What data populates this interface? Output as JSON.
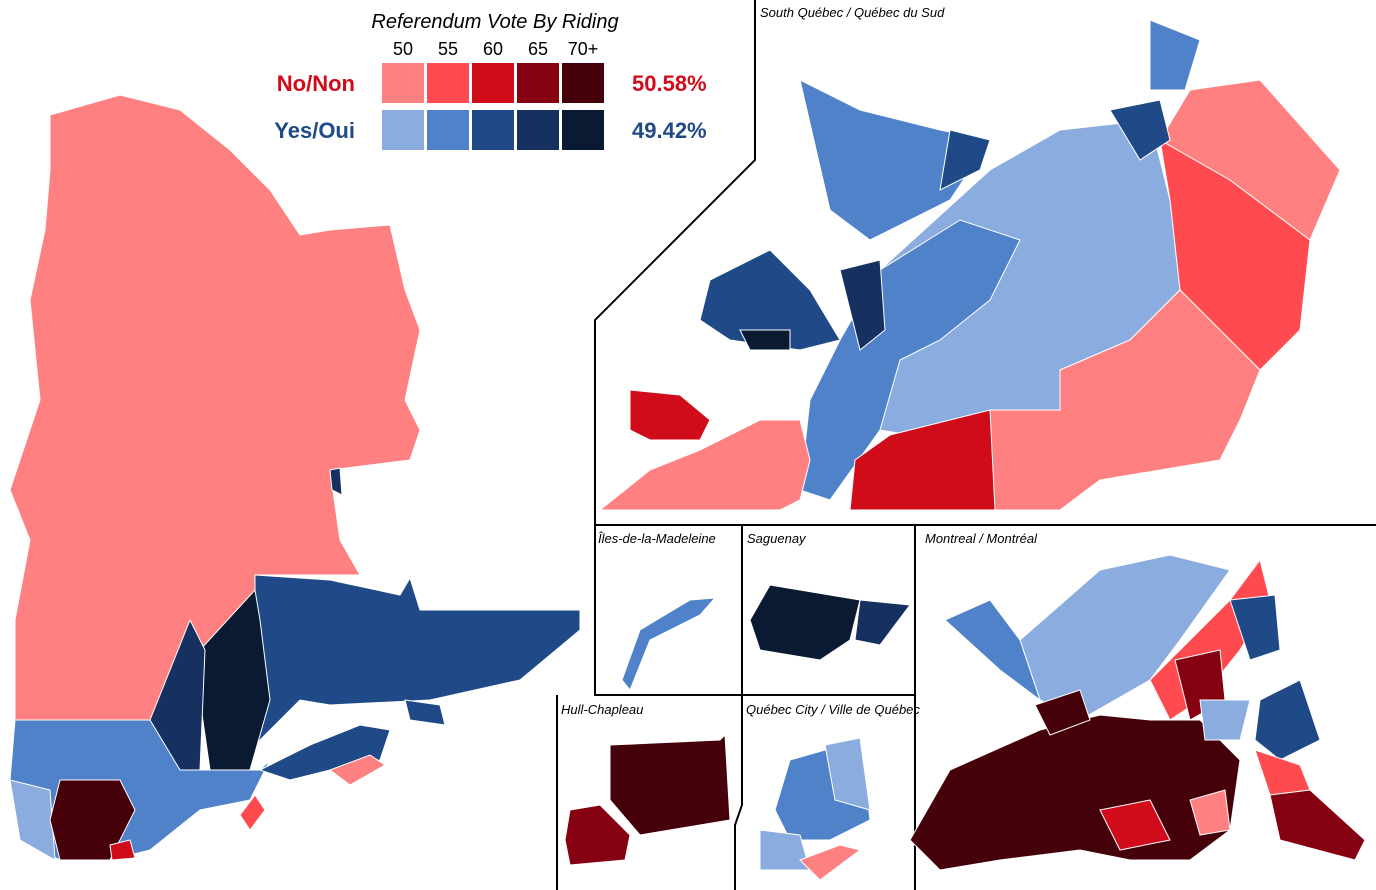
{
  "legend": {
    "title": "Referendum Vote By Riding",
    "thresholds": [
      "50",
      "55",
      "60",
      "65",
      "70+"
    ],
    "rows": [
      {
        "label": "No/Non",
        "total": "50.58%",
        "color": "#d10c1a",
        "swatches": [
          "#ff8080",
          "#ff4a50",
          "#d10c1a",
          "#850010",
          "#45000a"
        ]
      },
      {
        "label": "Yes/Oui",
        "total": "49.42%",
        "color": "#1f4a87",
        "swatches": [
          "#8aacdf",
          "#4f82c8",
          "#1f4a87",
          "#163060",
          "#0a1a33"
        ]
      }
    ]
  },
  "insets": [
    "South Québec / Québec du Sud",
    "Îles-de-la-Madeleine",
    "Saguenay",
    "Montreal / Montréal",
    "Hull-Chapleau",
    "Québec City / Ville de Québec"
  ]
}
